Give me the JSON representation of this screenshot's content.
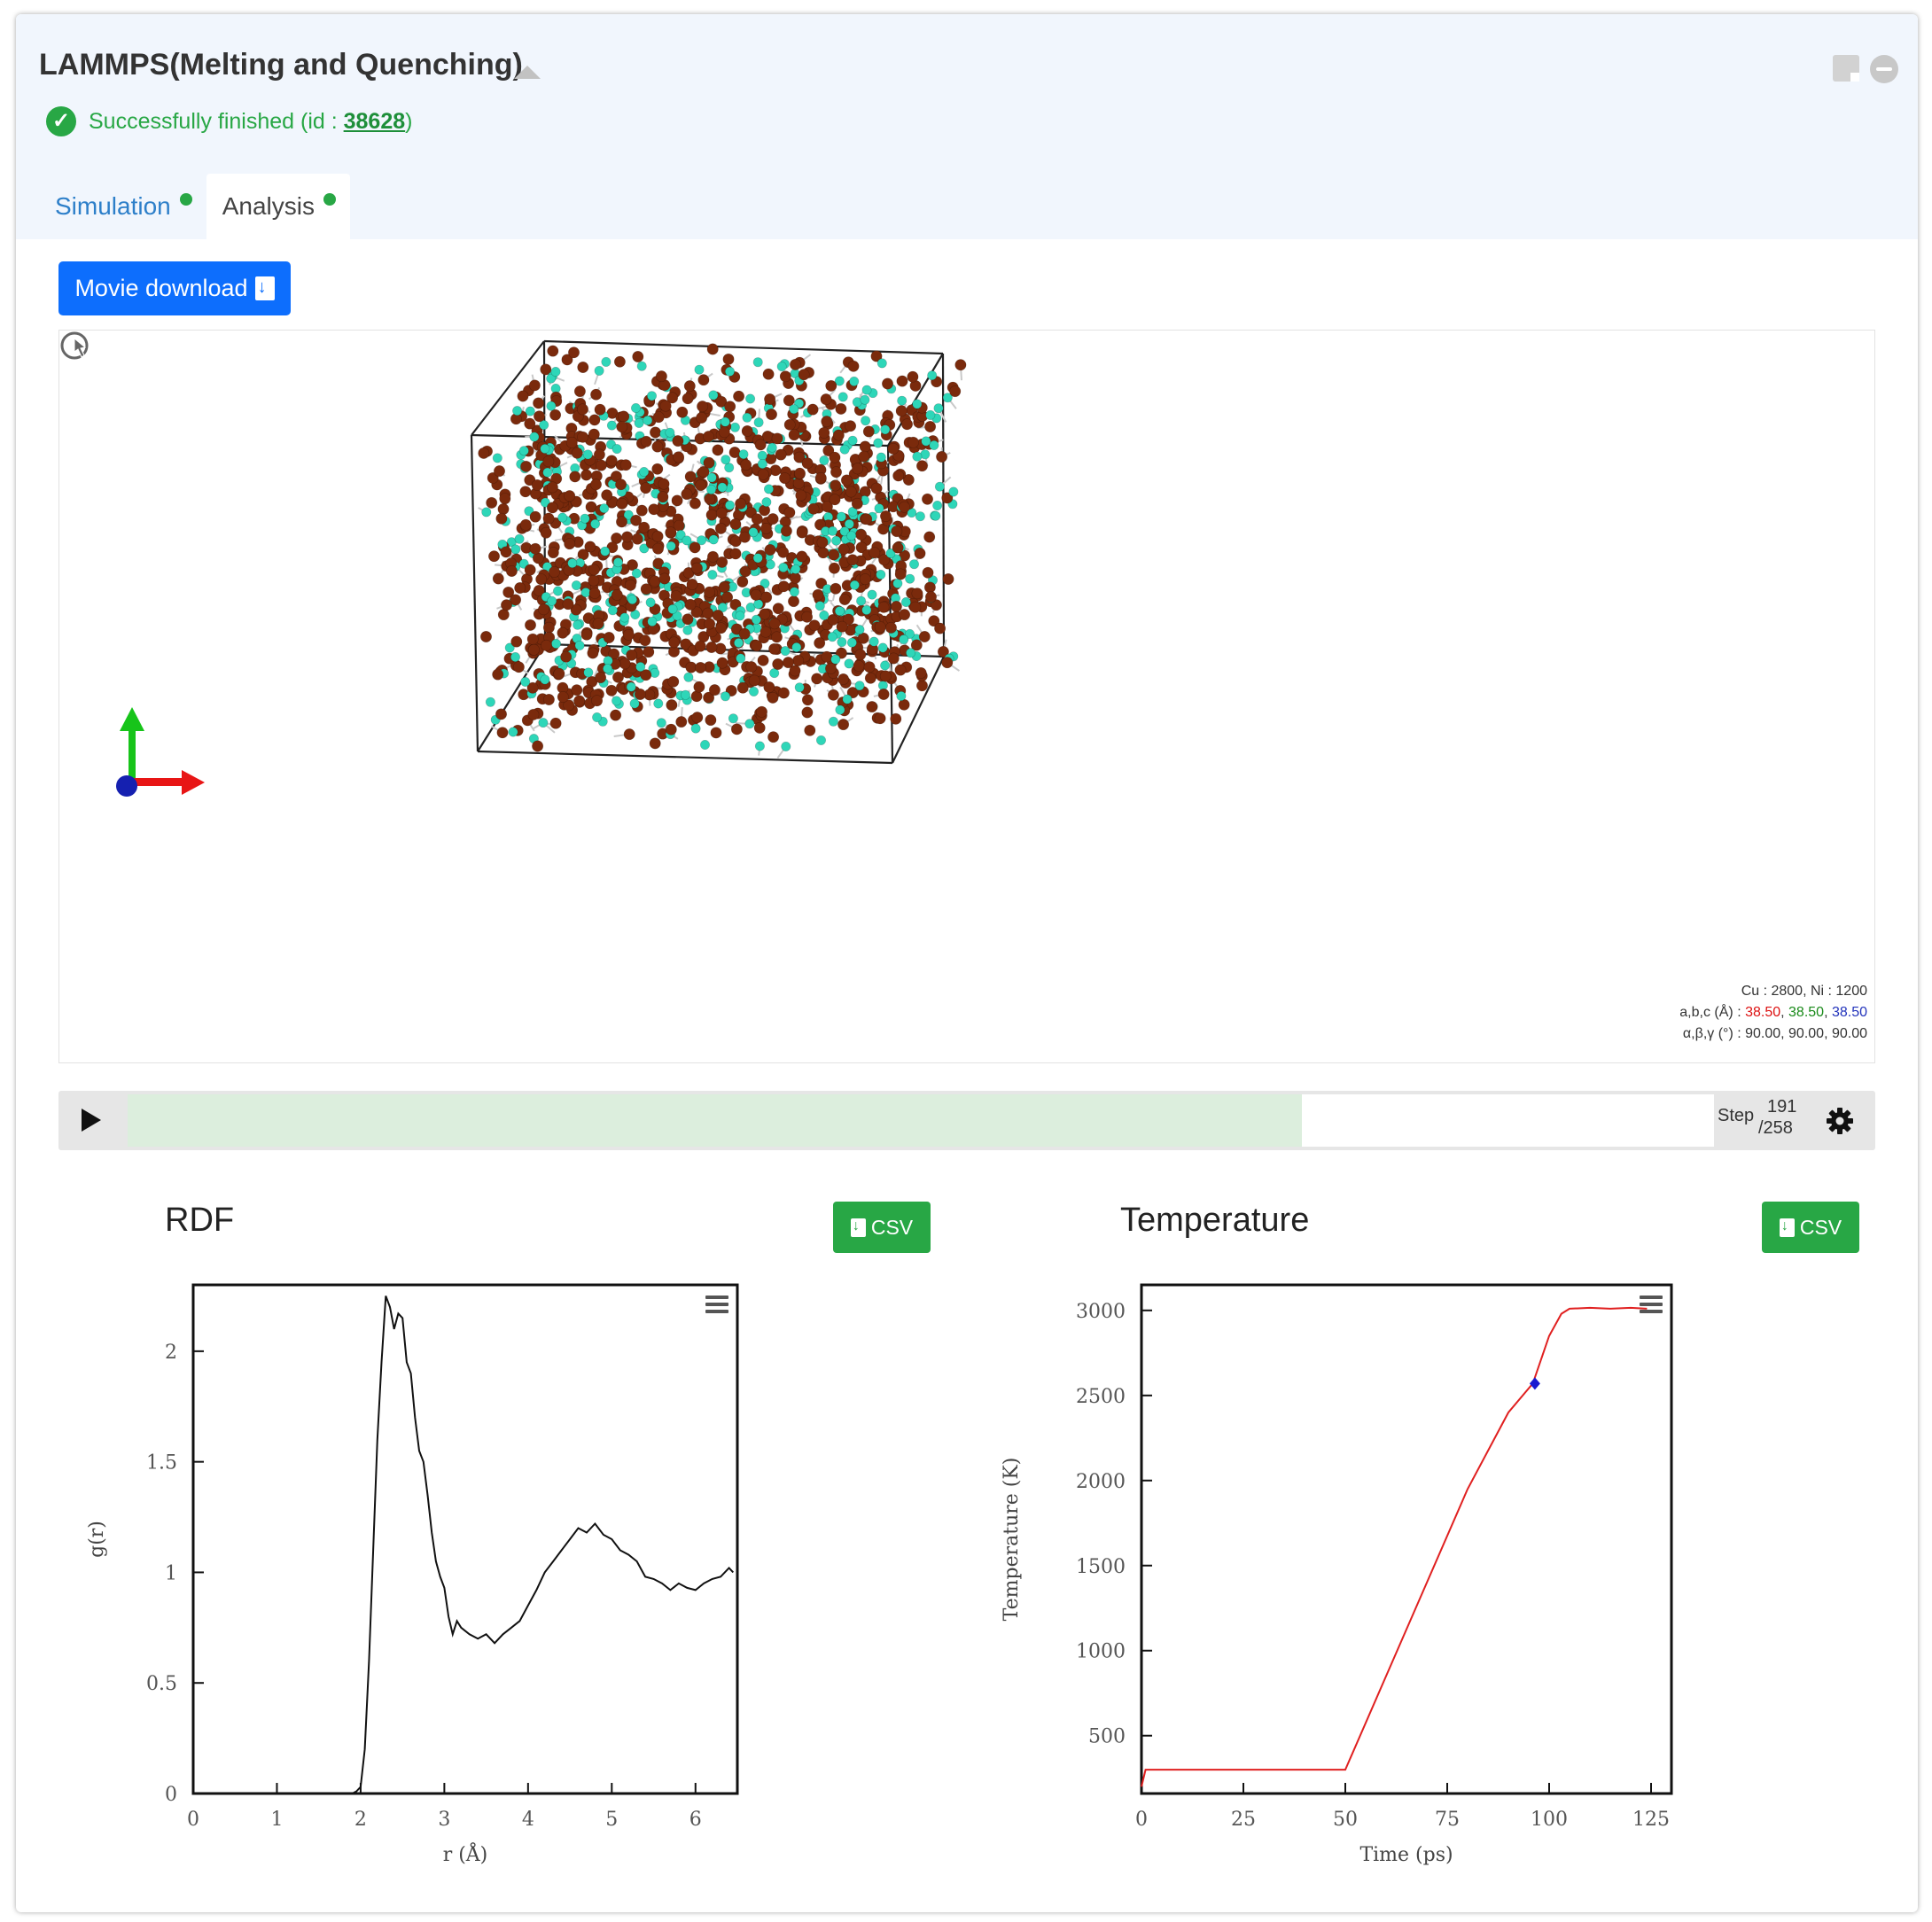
{
  "header": {
    "title": "LAMMPS(Melting and Quenching)",
    "status_text": "Successfully finished (id : ",
    "job_id": "38628",
    "status_close": ")"
  },
  "tabs": [
    {
      "label": "Simulation",
      "active": false
    },
    {
      "label": "Analysis",
      "active": true
    }
  ],
  "toolbar": {
    "movie_download_label": "Movie download"
  },
  "viewer": {
    "composition": "Cu : 2800, Ni : 1200",
    "abc_label": "a,b,c (Å) : ",
    "a": "38.50",
    "b": "38.50",
    "c": "38.50",
    "angles": "α,β,γ (°) : 90.00, 90.00, 90.00",
    "atom_colors": {
      "Cu": "#7a2a0c",
      "Ni": "#2ed6b8"
    }
  },
  "player": {
    "step_label": "Step",
    "current": "191",
    "total": "/258",
    "progress": 0.74
  },
  "rdf": {
    "title": "RDF",
    "csv_label": "CSV",
    "chart_data": {
      "type": "line",
      "xlabel": "r (Å)",
      "ylabel": "g(r)",
      "xlim": [
        0,
        6.5
      ],
      "ylim": [
        0,
        2.3
      ],
      "xticks": [
        "0",
        "1",
        "2",
        "3",
        "4",
        "5",
        "6"
      ],
      "yticks": [
        "0",
        "0.5",
        "1",
        "1.5",
        "2"
      ],
      "x": [
        1.9,
        1.95,
        2.0,
        2.05,
        2.1,
        2.15,
        2.2,
        2.25,
        2.3,
        2.35,
        2.4,
        2.45,
        2.5,
        2.55,
        2.6,
        2.65,
        2.7,
        2.75,
        2.8,
        2.85,
        2.9,
        2.95,
        3.0,
        3.05,
        3.1,
        3.15,
        3.2,
        3.3,
        3.4,
        3.5,
        3.6,
        3.7,
        3.8,
        3.9,
        4.0,
        4.1,
        4.2,
        4.3,
        4.4,
        4.5,
        4.6,
        4.7,
        4.8,
        4.9,
        5.0,
        5.1,
        5.2,
        5.3,
        5.4,
        5.5,
        5.6,
        5.7,
        5.8,
        5.9,
        6.0,
        6.1,
        6.2,
        6.3,
        6.4,
        6.45
      ],
      "y": [
        0.0,
        0.01,
        0.03,
        0.2,
        0.6,
        1.1,
        1.6,
        1.95,
        2.25,
        2.2,
        2.1,
        2.17,
        2.15,
        1.95,
        1.9,
        1.7,
        1.55,
        1.5,
        1.35,
        1.18,
        1.05,
        0.98,
        0.93,
        0.8,
        0.72,
        0.78,
        0.75,
        0.72,
        0.7,
        0.72,
        0.68,
        0.72,
        0.75,
        0.78,
        0.85,
        0.92,
        1.0,
        1.05,
        1.1,
        1.15,
        1.2,
        1.18,
        1.22,
        1.17,
        1.15,
        1.1,
        1.08,
        1.05,
        0.98,
        0.97,
        0.95,
        0.92,
        0.95,
        0.93,
        0.92,
        0.95,
        0.97,
        0.98,
        1.02,
        1.0
      ]
    }
  },
  "temperature": {
    "title": "Temperature",
    "csv_label": "CSV",
    "chart_data": {
      "type": "line",
      "xlabel": "Time (ps)",
      "ylabel": "Temperature (K)",
      "xlim": [
        0,
        130
      ],
      "ylim": [
        160,
        3150
      ],
      "xticks": [
        "0",
        "25",
        "50",
        "75",
        "100",
        "125"
      ],
      "yticks": [
        "500",
        "1000",
        "1500",
        "2000",
        "2500",
        "3000"
      ],
      "x": [
        0,
        1,
        5,
        15,
        25,
        35,
        45,
        50,
        60,
        70,
        80,
        90,
        96,
        100,
        103,
        105,
        110,
        115,
        120,
        124
      ],
      "y": [
        200,
        300,
        300,
        300,
        300,
        300,
        300,
        300,
        850,
        1400,
        1950,
        2400,
        2570,
        2850,
        2980,
        3010,
        3015,
        3010,
        3015,
        3010
      ],
      "marker": {
        "x": 96.5,
        "y": 2570,
        "color": "#1a1ad0"
      },
      "line_color": "#e02020"
    }
  }
}
